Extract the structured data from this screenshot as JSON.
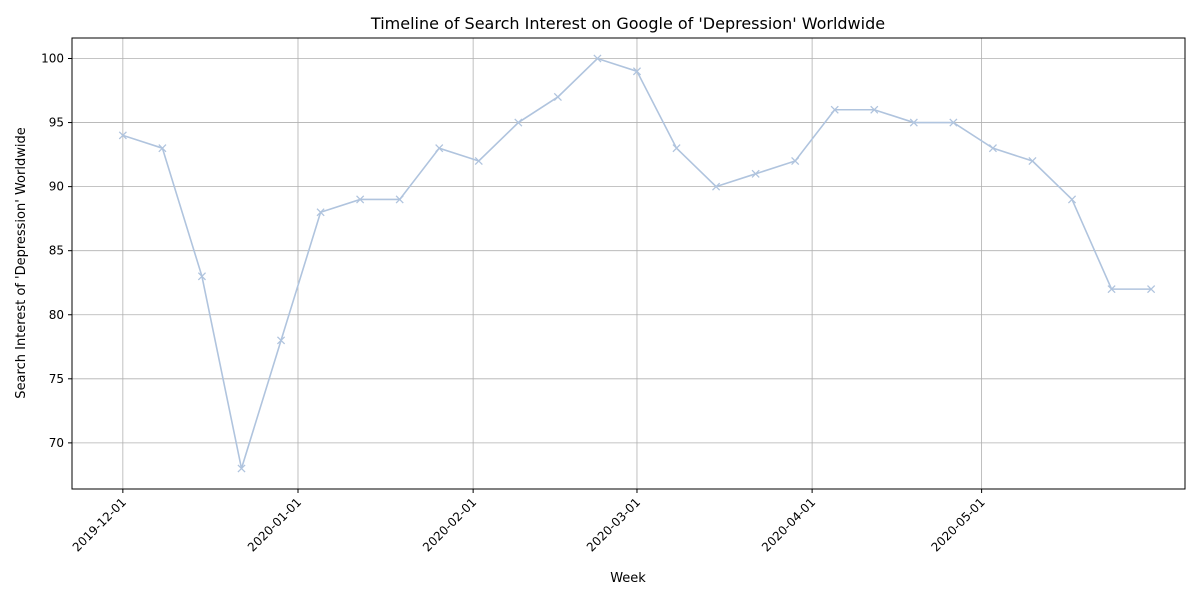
{
  "chart_data": {
    "type": "line",
    "title": "Timeline of Search Interest on Google of 'Depression' Worldwide",
    "xlabel": "Week",
    "ylabel": "Search Interest of 'Depression' Worldwide",
    "x": [
      "2019-12-01",
      "2019-12-08",
      "2019-12-15",
      "2019-12-22",
      "2019-12-29",
      "2020-01-05",
      "2020-01-12",
      "2020-01-19",
      "2020-01-26",
      "2020-02-02",
      "2020-02-09",
      "2020-02-16",
      "2020-02-23",
      "2020-03-01",
      "2020-03-08",
      "2020-03-15",
      "2020-03-22",
      "2020-03-29",
      "2020-04-05",
      "2020-04-12",
      "2020-04-19",
      "2020-04-26",
      "2020-05-03",
      "2020-05-10",
      "2020-05-17",
      "2020-05-24",
      "2020-05-31"
    ],
    "series": [
      {
        "values": [
          94,
          93,
          83,
          68,
          78,
          88,
          89,
          89,
          93,
          92,
          95,
          97,
          100,
          99,
          93,
          90,
          91,
          92,
          96,
          96,
          95,
          95,
          93,
          92,
          89,
          82,
          82
        ],
        "color": "#b0c4de",
        "marker": "x"
      }
    ],
    "xticks": [
      "2019-12-01",
      "2020-01-01",
      "2020-02-01",
      "2020-03-01",
      "2020-04-01",
      "2020-05-01"
    ],
    "yticks": [
      70,
      75,
      80,
      85,
      90,
      95,
      100
    ],
    "xlim": [
      "2019-11-22",
      "2020-06-06"
    ],
    "ylim": [
      66.4,
      101.6
    ],
    "grid": true,
    "legend": "none"
  }
}
